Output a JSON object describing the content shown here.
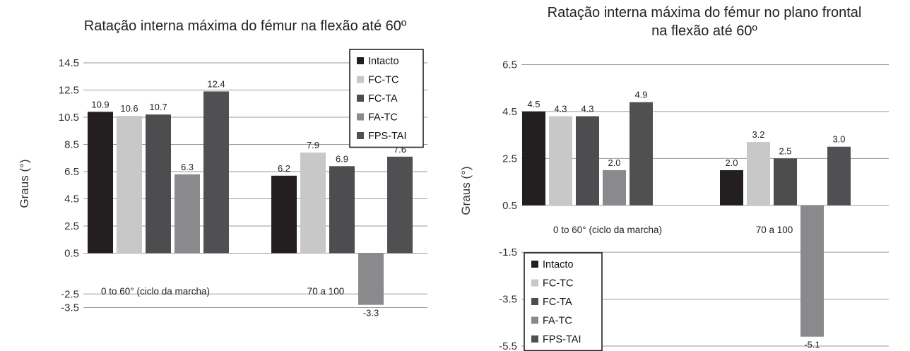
{
  "chart_data": [
    {
      "type": "bar",
      "title": "Ratação interna máxima do fémur na flexão até 60º",
      "ylabel": "Graus (°)",
      "xlabel": "",
      "ylim": [
        -4.0,
        15.5
      ],
      "yticks": [
        "14.5",
        "12.5",
        "10.5",
        "8.5",
        "6.5",
        "4.5",
        "2.5",
        "0.5",
        "-2.5",
        "-3.5"
      ],
      "categories": [
        "0 to 60° (ciclo da marcha)",
        "70 a 100"
      ],
      "legend_position": "top-right",
      "grid": true,
      "series": [
        {
          "name": "Intacto",
          "color": "#231f20",
          "values": [
            10.9,
            6.2
          ],
          "labels": [
            "10.9",
            "6.2"
          ]
        },
        {
          "name": "FC-TC",
          "color": "#c8c8c8",
          "values": [
            10.6,
            7.9
          ],
          "labels": [
            "10.6",
            "7.9"
          ]
        },
        {
          "name": "FC-TA",
          "color": "#4d4d4f",
          "values": [
            10.7,
            6.9
          ],
          "labels": [
            "10.7",
            "6.9"
          ]
        },
        {
          "name": "FA-TC",
          "color": "#8a8a8c",
          "values": [
            6.3,
            -3.3
          ],
          "labels": [
            "6.3",
            "-3.3"
          ]
        },
        {
          "name": "FPS-TAI",
          "color": "#505052",
          "values": [
            12.4,
            7.6
          ],
          "labels": [
            "12.4",
            "7.6"
          ]
        }
      ]
    },
    {
      "type": "bar",
      "title": "Ratação interna máxima do fémur no plano frontal na flexão até 60º",
      "ylabel": "Graus (°)",
      "xlabel": "",
      "ylim": [
        -5.7,
        7.2
      ],
      "yticks": [
        "6.5",
        "4.5",
        "2.5",
        "0.5",
        "-1.5",
        "-3.5",
        "-5.5"
      ],
      "categories": [
        "0 to 60° (ciclo da marcha)",
        "70 a 100"
      ],
      "legend_position": "bottom-left",
      "grid": true,
      "series": [
        {
          "name": "Intacto",
          "color": "#231f20",
          "values": [
            4.5,
            2.0
          ],
          "labels": [
            "4.5",
            "2.0"
          ]
        },
        {
          "name": "FC-TC",
          "color": "#c8c8c8",
          "values": [
            4.3,
            3.2
          ],
          "labels": [
            "4.3",
            "3.2"
          ]
        },
        {
          "name": "FC-TA",
          "color": "#4d4d4f",
          "values": [
            4.3,
            2.5
          ],
          "labels": [
            "4.3",
            "2.5"
          ]
        },
        {
          "name": "FA-TC",
          "color": "#8a8a8c",
          "values": [
            2.0,
            -5.1
          ],
          "labels": [
            "2.0",
            "-5.1"
          ]
        },
        {
          "name": "FPS-TAI",
          "color": "#505052",
          "values": [
            4.9,
            3.0
          ],
          "labels": [
            "4.9",
            "3.0"
          ]
        }
      ]
    }
  ]
}
